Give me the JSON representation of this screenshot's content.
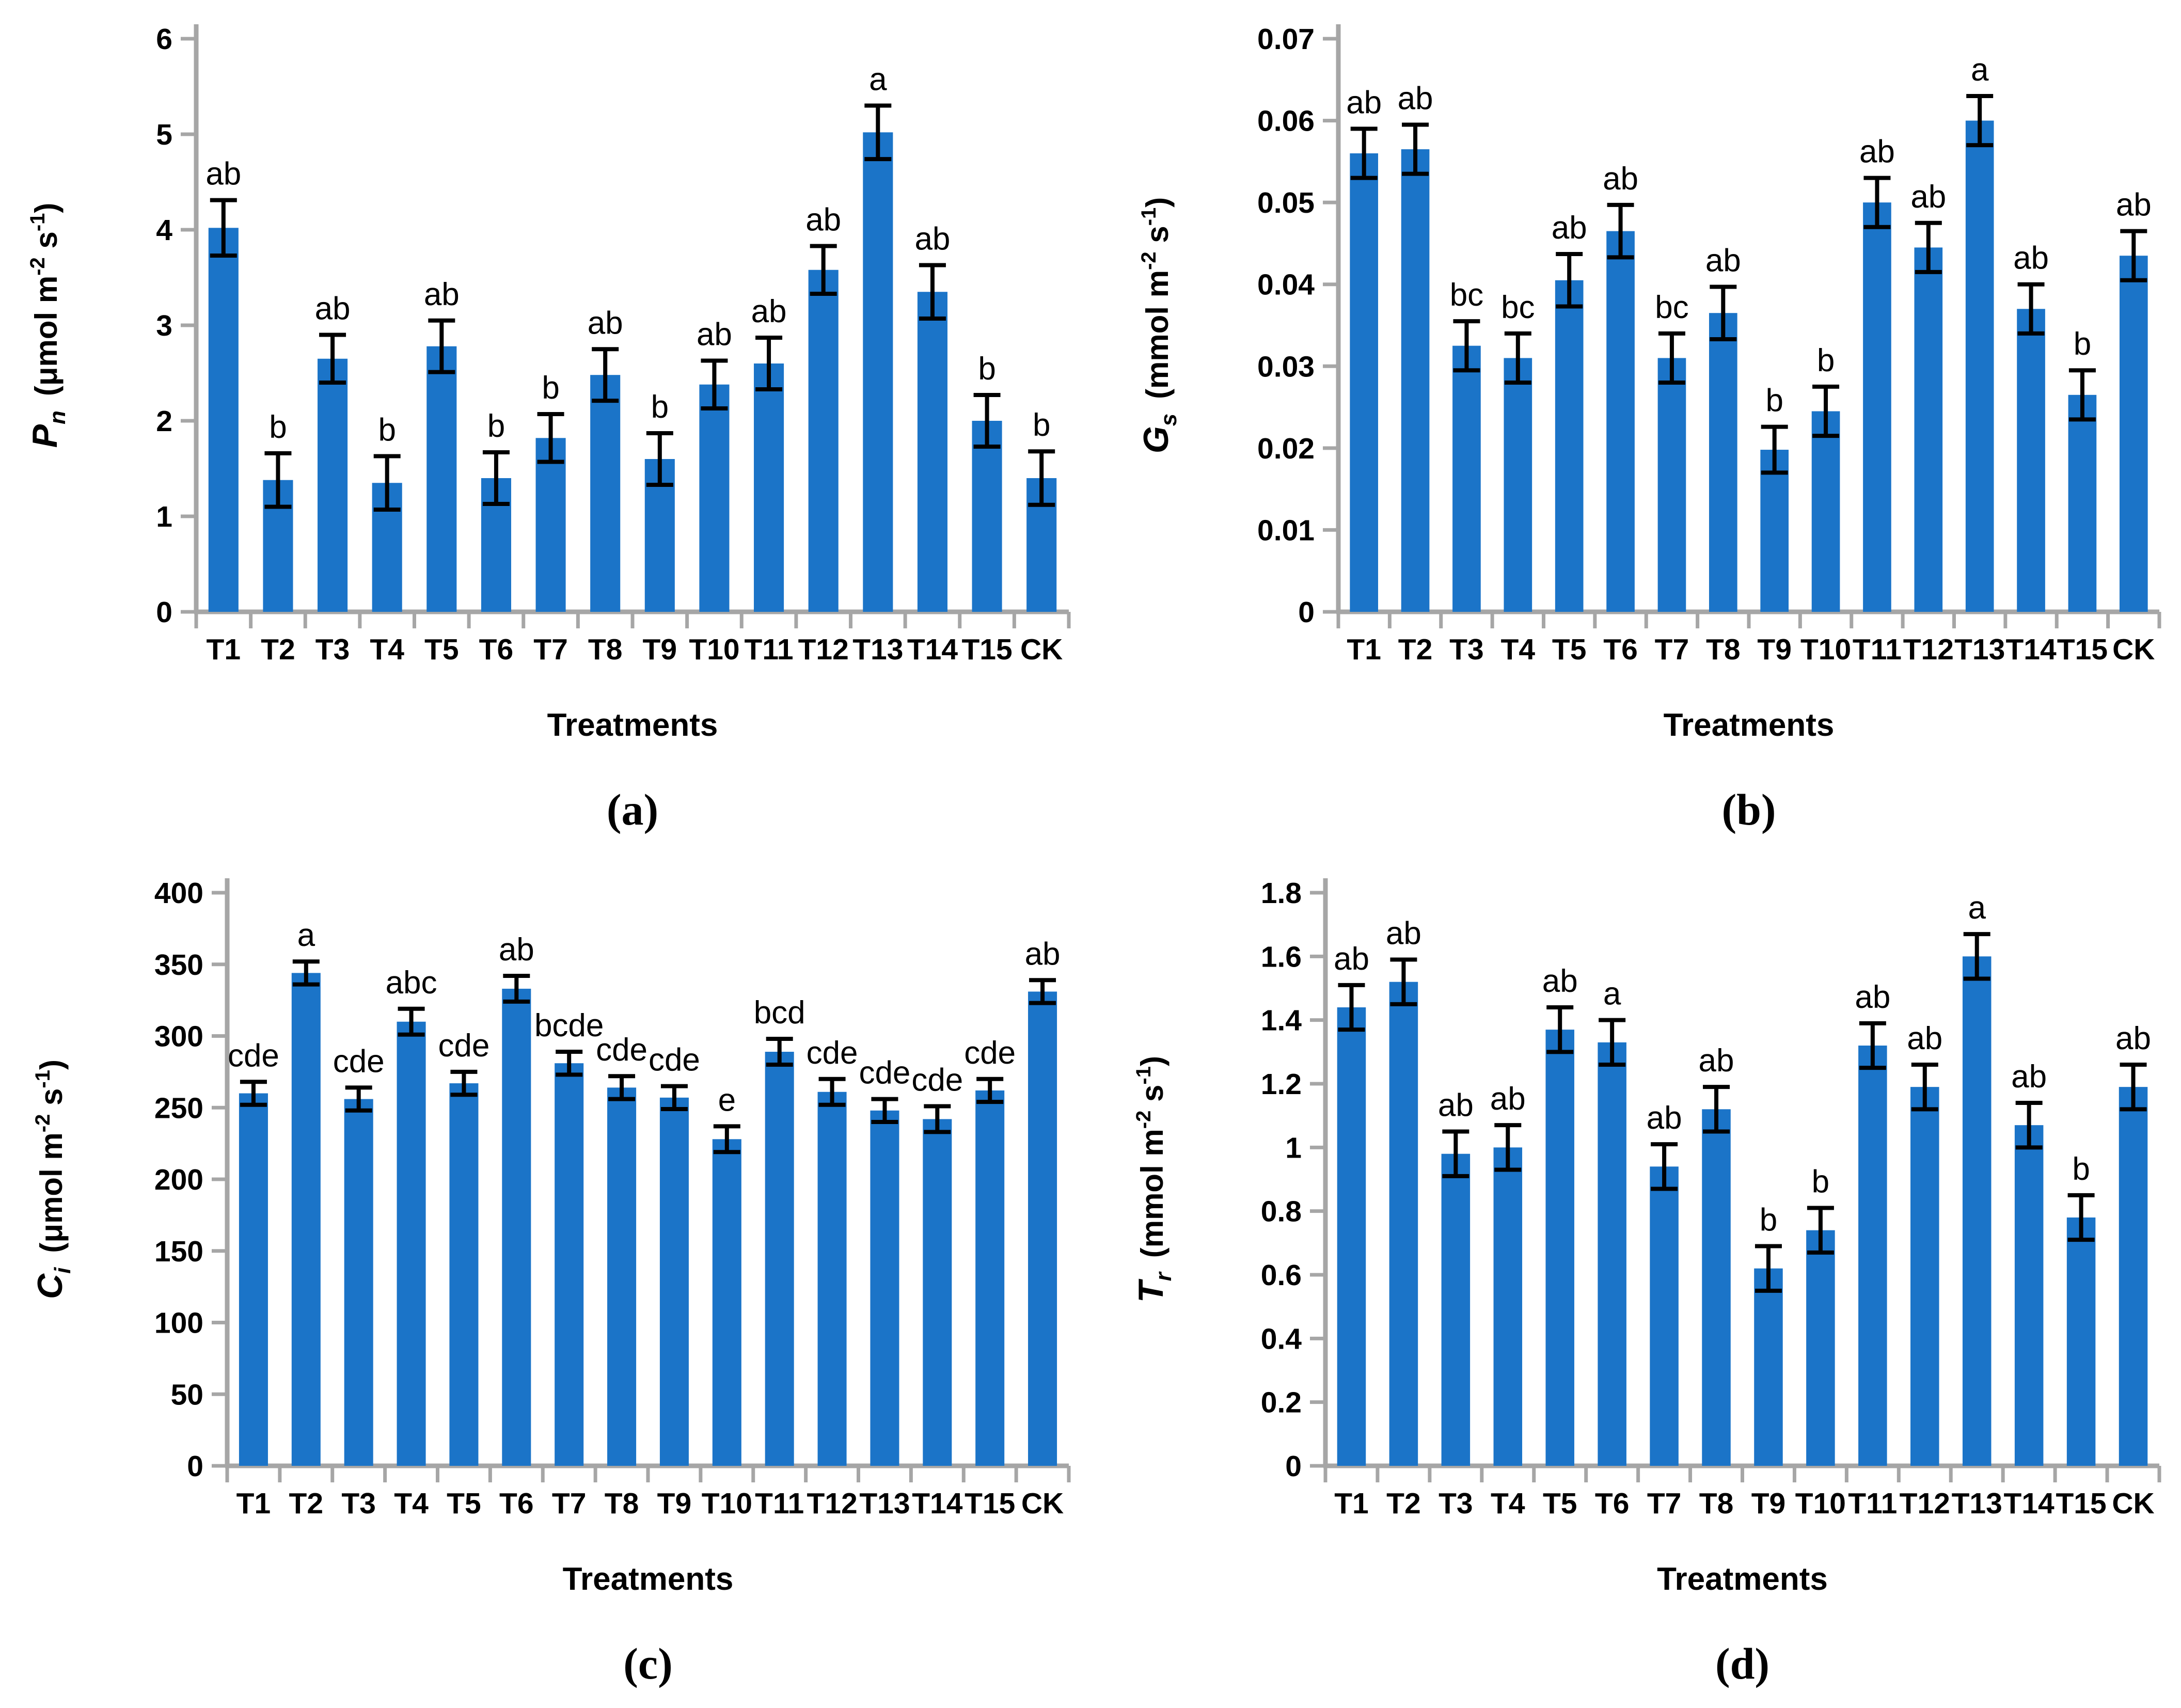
{
  "figure": {
    "type": "four-panel bar chart figure",
    "x_axis_title": "Treatments",
    "categories": [
      "T1",
      "T2",
      "T3",
      "T4",
      "T5",
      "T6",
      "T7",
      "T8",
      "T9",
      "T10",
      "T11",
      "T12",
      "T13",
      "T14",
      "T15",
      "CK"
    ]
  },
  "colors": {
    "bar_fill": "#1B74C8",
    "axis_line": "#A6A6A6",
    "error_bar": "#000000",
    "text": "#000000",
    "background": "#FFFFFF"
  },
  "chart_data": [
    {
      "type": "bar",
      "caption": "(a)",
      "ylabel_var": "P",
      "ylabel_sub": "n",
      "ylabel_unit_tokens": [
        "(μmol m",
        [
          "-2"
        ],
        " s",
        [
          "-1"
        ],
        ")"
      ],
      "xlabel": "Treatments",
      "categories": [
        "T1",
        "T2",
        "T3",
        "T4",
        "T5",
        "T6",
        "T7",
        "T8",
        "T9",
        "T10",
        "T11",
        "T12",
        "T13",
        "T14",
        "T15",
        "CK"
      ],
      "values": [
        4.02,
        1.38,
        2.65,
        1.35,
        2.78,
        1.4,
        1.82,
        2.48,
        1.6,
        2.38,
        2.6,
        3.58,
        5.02,
        3.35,
        2.0,
        1.4
      ],
      "errors": [
        0.29,
        0.28,
        0.25,
        0.28,
        0.27,
        0.27,
        0.25,
        0.27,
        0.27,
        0.25,
        0.27,
        0.25,
        0.28,
        0.28,
        0.27,
        0.28
      ],
      "sig_labels": [
        "ab",
        "b",
        "ab",
        "b",
        "ab",
        "b",
        "b",
        "ab",
        "b",
        "ab",
        "ab",
        "ab",
        "a",
        "ab",
        "b",
        "b"
      ],
      "ylim": [
        0,
        6
      ],
      "ytick_labels": [
        "0",
        "1",
        "2",
        "3",
        "4",
        "5",
        "6"
      ],
      "grid": false,
      "legend": "none"
    },
    {
      "type": "bar",
      "caption": "(b)",
      "ylabel_var": "G",
      "ylabel_sub": "s",
      "ylabel_unit_tokens": [
        "(mmol m",
        [
          "-2"
        ],
        " s",
        [
          "-1"
        ],
        ")"
      ],
      "xlabel": "Treatments",
      "categories": [
        "T1",
        "T2",
        "T3",
        "T4",
        "T5",
        "T6",
        "T7",
        "T8",
        "T9",
        "T10",
        "T11",
        "T12",
        "T13",
        "T14",
        "T15",
        "CK"
      ],
      "values": [
        0.056,
        0.0565,
        0.0325,
        0.031,
        0.0405,
        0.0465,
        0.031,
        0.0365,
        0.0198,
        0.0245,
        0.05,
        0.0445,
        0.06,
        0.037,
        0.0265,
        0.0435
      ],
      "errors": [
        0.003,
        0.003,
        0.003,
        0.003,
        0.0032,
        0.0032,
        0.003,
        0.0032,
        0.0028,
        0.003,
        0.003,
        0.003,
        0.003,
        0.003,
        0.003,
        0.003
      ],
      "sig_labels": [
        "ab",
        "ab",
        "bc",
        "bc",
        "ab",
        "ab",
        "bc",
        "ab",
        "b",
        "b",
        "ab",
        "ab",
        "a",
        "ab",
        "b",
        "ab"
      ],
      "ylim": [
        0,
        0.07
      ],
      "ytick_labels": [
        "0",
        "0.01",
        "0.02",
        "0.03",
        "0.04",
        "0.05",
        "0.06",
        "0.07"
      ],
      "grid": false,
      "legend": "none"
    },
    {
      "type": "bar",
      "caption": "(c)",
      "ylabel_var": "C",
      "ylabel_sub": "i",
      "ylabel_unit_tokens": [
        "(μmol m",
        [
          "-2"
        ],
        " s",
        [
          "-1"
        ],
        ")"
      ],
      "xlabel": "Treatments",
      "categories": [
        "T1",
        "T2",
        "T3",
        "T4",
        "T5",
        "T6",
        "T7",
        "T8",
        "T9",
        "T10",
        "T11",
        "T12",
        "T13",
        "T14",
        "T15",
        "CK"
      ],
      "values": [
        260,
        344,
        256,
        310,
        267,
        333,
        281,
        264,
        257,
        228,
        289,
        261,
        248,
        242,
        262,
        331
      ],
      "errors": [
        8,
        8,
        8,
        9,
        8,
        9,
        8,
        8,
        8,
        9,
        9,
        9,
        8,
        9,
        8,
        8
      ],
      "sig_labels": [
        "cde",
        "a",
        "cde",
        "abc",
        "cde",
        "ab",
        "bcde",
        "cde",
        "cde",
        "e",
        "bcd",
        "cde",
        "cde",
        "cde",
        "cde",
        "ab"
      ],
      "ylim": [
        0,
        400
      ],
      "ytick_labels": [
        "0",
        "50",
        "100",
        "150",
        "200",
        "250",
        "300",
        "350",
        "400"
      ],
      "grid": false,
      "legend": "none"
    },
    {
      "type": "bar",
      "caption": "(d)",
      "ylabel_var": "T",
      "ylabel_sub": "r",
      "ylabel_unit_tokens": [
        "(mmol m",
        [
          "-2"
        ],
        " s",
        [
          "-1"
        ],
        ")"
      ],
      "xlabel": "Treatments",
      "categories": [
        "T1",
        "T2",
        "T3",
        "T4",
        "T5",
        "T6",
        "T7",
        "T8",
        "T9",
        "T10",
        "T11",
        "T12",
        "T13",
        "T14",
        "T15",
        "CK"
      ],
      "values": [
        1.44,
        1.52,
        0.98,
        1.0,
        1.37,
        1.33,
        0.94,
        1.12,
        0.62,
        0.74,
        1.32,
        1.19,
        1.6,
        1.07,
        0.78,
        1.19
      ],
      "errors": [
        0.07,
        0.07,
        0.07,
        0.07,
        0.07,
        0.07,
        0.07,
        0.07,
        0.07,
        0.07,
        0.07,
        0.07,
        0.07,
        0.07,
        0.07,
        0.07
      ],
      "sig_labels": [
        "ab",
        "ab",
        "ab",
        "ab",
        "ab",
        "a",
        "ab",
        "ab",
        "b",
        "b",
        "ab",
        "ab",
        "a",
        "ab",
        "b",
        "ab"
      ],
      "ylim": [
        0,
        1.8
      ],
      "ytick_labels": [
        "0",
        "0.2",
        "0.4",
        "0.6",
        "0.8",
        "1",
        "1.2",
        "1.4",
        "1.6",
        "1.8"
      ],
      "grid": false,
      "legend": "none"
    }
  ]
}
